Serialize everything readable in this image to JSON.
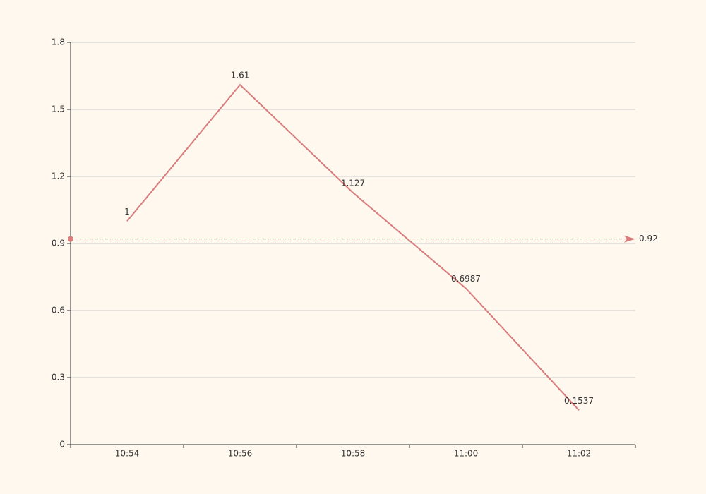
{
  "chart_data": {
    "type": "line",
    "categories": [
      "10:54",
      "10:56",
      "10:58",
      "11:00",
      "11:02"
    ],
    "series": [
      {
        "values": [
          1,
          1.61,
          1.127,
          0.6987,
          0.1537
        ],
        "color": "#d87c7c"
      }
    ],
    "ylim": [
      0,
      1.8
    ],
    "yticks": [
      0,
      0.3,
      0.6,
      0.9,
      1.2,
      1.5,
      1.8
    ],
    "grid": true,
    "markline": {
      "value": 0.92,
      "color": "#d87c7c"
    }
  }
}
